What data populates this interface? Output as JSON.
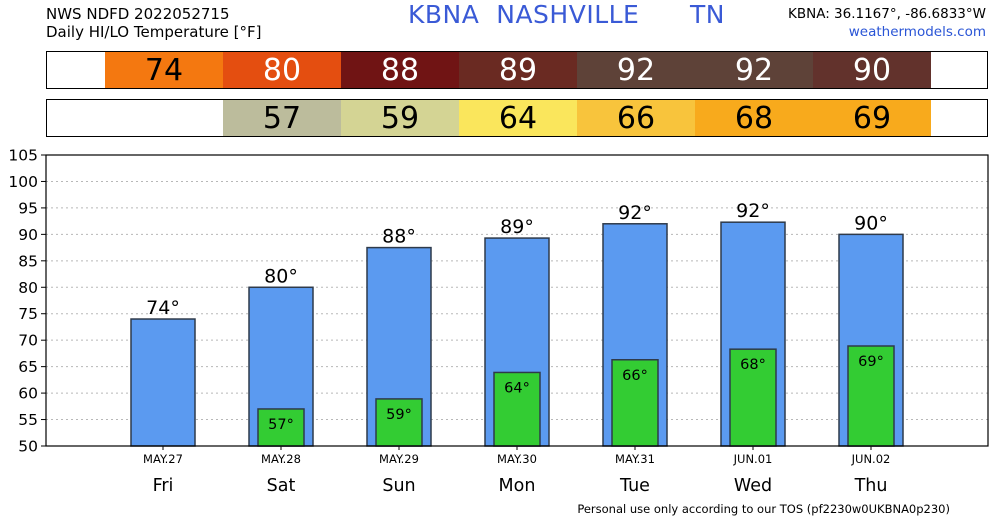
{
  "header": {
    "line1": "NWS NDFD 2022052715",
    "line2": "Daily HI/LO Temperature [°F]",
    "station_title": "KBNA  NASHVILLE      TN",
    "coords": "KBNA: 36.1167°, -86.6833°W",
    "site": "weathermodels.com"
  },
  "hi_strip": [
    {
      "text": "74",
      "bg": "#f47810",
      "fg": "#000000"
    },
    {
      "text": "80",
      "bg": "#e44e10",
      "fg": "#ffffff"
    },
    {
      "text": "88",
      "bg": "#701414",
      "fg": "#ffffff"
    },
    {
      "text": "89",
      "bg": "#6a2a22",
      "fg": "#ffffff"
    },
    {
      "text": "92",
      "bg": "#5e4238",
      "fg": "#ffffff"
    },
    {
      "text": "92",
      "bg": "#5e4238",
      "fg": "#ffffff"
    },
    {
      "text": "90",
      "bg": "#62322c",
      "fg": "#ffffff"
    }
  ],
  "lo_strip": [
    {
      "text": "",
      "bg": "#ffffff",
      "fg": "#000000"
    },
    {
      "text": "57",
      "bg": "#bcbc9c",
      "fg": "#000000"
    },
    {
      "text": "59",
      "bg": "#d4d494",
      "fg": "#000000"
    },
    {
      "text": "64",
      "bg": "#fae65c",
      "fg": "#000000"
    },
    {
      "text": "66",
      "bg": "#f8c43c",
      "fg": "#000000"
    },
    {
      "text": "68",
      "bg": "#f8aa1c",
      "fg": "#000000"
    },
    {
      "text": "69",
      "bg": "#f8aa1c",
      "fg": "#000000"
    }
  ],
  "chart_data": {
    "type": "bar",
    "dates": [
      "MAY.27",
      "MAY.28",
      "MAY.29",
      "MAY.30",
      "MAY.31",
      "JUN.01",
      "JUN.02"
    ],
    "days": [
      "Fri",
      "Sat",
      "Sun",
      "Mon",
      "Tue",
      "Wed",
      "Thu"
    ],
    "series": [
      {
        "name": "HI",
        "values": [
          74,
          80,
          87.5,
          89.3,
          92,
          92.3,
          90
        ],
        "labels": [
          "74°",
          "80°",
          "88°",
          "89°",
          "92°",
          "92°",
          "90°"
        ],
        "color": "#5b9af0"
      },
      {
        "name": "LO",
        "values": [
          null,
          57,
          58.9,
          63.9,
          66.3,
          68.3,
          68.9
        ],
        "labels": [
          "",
          "57°",
          "59°",
          "64°",
          "66°",
          "68°",
          "69°"
        ],
        "color": "#33cc33"
      }
    ],
    "ylim": [
      50,
      105
    ],
    "yticks": [
      50,
      55,
      60,
      65,
      70,
      75,
      80,
      85,
      90,
      95,
      100,
      105
    ],
    "grid": true
  },
  "footer": "Personal use only according to our TOS (pf2230w0UKBNA0p230)"
}
